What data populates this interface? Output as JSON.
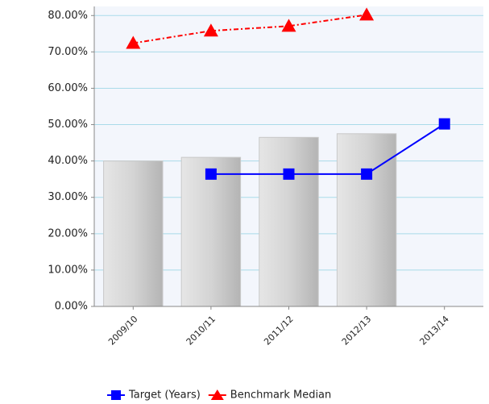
{
  "chart_data": {
    "type": "bar",
    "categories": [
      "2009/10",
      "2010/11",
      "2011/12",
      "2012/13",
      "2013/14"
    ],
    "bars": {
      "color": "#c8c8c8",
      "values": [
        40,
        41,
        46.5,
        47.5,
        null
      ]
    },
    "series": [
      {
        "name": "Target (Years)",
        "color": "#0000ff",
        "values": [
          null,
          36.4,
          36.4,
          36.4,
          50.2
        ]
      },
      {
        "name": "Benchmark Median",
        "color": "#ff0000",
        "values": [
          72.4,
          75.8,
          77.1,
          80.2,
          null
        ]
      }
    ],
    "ylim": [
      0,
      82.5
    ],
    "yticks": [
      {
        "value": 0,
        "label": "0.00%"
      },
      {
        "value": 10,
        "label": "10.00%"
      },
      {
        "value": 20,
        "label": "20.00%"
      },
      {
        "value": 30,
        "label": "30.00%"
      },
      {
        "value": 40,
        "label": "40.00%"
      },
      {
        "value": 50,
        "label": "50.00%"
      },
      {
        "value": 60,
        "label": "60.00%"
      },
      {
        "value": 70,
        "label": "70.00%"
      },
      {
        "value": 80,
        "label": "80.00%"
      }
    ],
    "grid": true
  }
}
